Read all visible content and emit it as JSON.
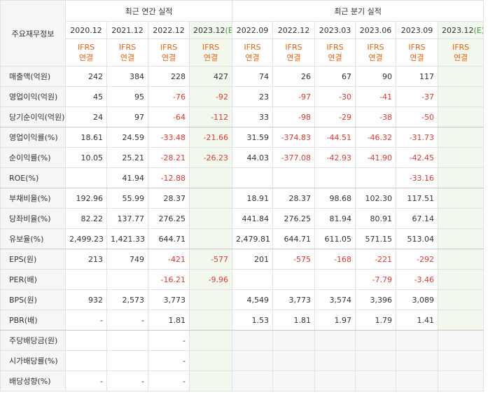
{
  "header": {
    "corner": "주요재무정보",
    "groups": [
      "최근 연간 실적",
      "최근 분기 실적"
    ],
    "periods": [
      {
        "text": "2020.12"
      },
      {
        "text": "2021.12"
      },
      {
        "text": "2022.12"
      },
      {
        "text": "2023.12",
        "mark": "(E)"
      },
      {
        "text": "2022.09"
      },
      {
        "text": "2022.12"
      },
      {
        "text": "2023.03"
      },
      {
        "text": "2023.06"
      },
      {
        "text": "2023.09"
      },
      {
        "text": "2023.12",
        "mark": "(E)"
      }
    ],
    "basis": [
      {
        "line1": "IFRS",
        "line2": "연결"
      },
      {
        "line1": "IFRS",
        "line2": "연결"
      },
      {
        "line1": "IFRS",
        "line2": "연결"
      },
      {
        "line1": "IFRS",
        "line2": "연결"
      },
      {
        "line1": "IFRS",
        "line2": "연결"
      },
      {
        "line1": "IFRS",
        "line2": "연결"
      },
      {
        "line1": "IFRS",
        "line2": "연결"
      },
      {
        "line1": "IFRS",
        "line2": "연결"
      },
      {
        "line1": "IFRS",
        "line2": "연결"
      },
      {
        "line1": "IFRS",
        "line2": "연결"
      }
    ]
  },
  "table": {
    "rows": [
      {
        "label": "매출액(억원)",
        "values": [
          "242",
          "384",
          "228",
          "427",
          "74",
          "26",
          "67",
          "90",
          "117",
          null
        ]
      },
      {
        "label": "영업이익(억원)",
        "values": [
          "45",
          "95",
          "-76",
          "-92",
          "23",
          "-97",
          "-30",
          "-41",
          "-37",
          null
        ]
      },
      {
        "label": "당기순이익(억원)",
        "values": [
          "24",
          "97",
          "-64",
          "-112",
          "33",
          "-98",
          "-29",
          "-38",
          "-50",
          null
        ]
      },
      {
        "label": "영업이익률(%)",
        "values": [
          "18.61",
          "24.59",
          "-33.48",
          "-21.66",
          "31.59",
          "-374.83",
          "-44.51",
          "-46.32",
          "-31.73",
          null
        ]
      },
      {
        "label": "순이익률(%)",
        "values": [
          "10.05",
          "25.21",
          "-28.21",
          "-26.23",
          "44.03",
          "-377.08",
          "-42.93",
          "-41.90",
          "-42.45",
          null
        ]
      },
      {
        "label": "ROE(%)",
        "values": [
          null,
          "41.94",
          "-12.88",
          null,
          null,
          null,
          null,
          null,
          "-33.16",
          null
        ]
      },
      {
        "label": "부채비율(%)",
        "values": [
          "192.96",
          "55.99",
          "28.37",
          null,
          "18.91",
          "28.37",
          "98.68",
          "102.30",
          "117.51",
          null
        ]
      },
      {
        "label": "당좌비율(%)",
        "values": [
          "82.22",
          "137.77",
          "276.25",
          null,
          "441.84",
          "276.25",
          "81.94",
          "80.91",
          "67.14",
          null
        ]
      },
      {
        "label": "유보율(%)",
        "values": [
          "2,499.23",
          "1,421.33",
          "644.71",
          null,
          "2,479.81",
          "644.71",
          "611.05",
          "571.15",
          "513.04",
          null
        ]
      },
      {
        "label": "EPS(원)",
        "values": [
          "213",
          "749",
          "-421",
          "-577",
          "201",
          "-575",
          "-168",
          "-221",
          "-292",
          null
        ]
      },
      {
        "label": "PER(배)",
        "values": [
          null,
          null,
          "-16.21",
          "-9.96",
          null,
          null,
          null,
          "-7.79",
          "-3.46",
          null
        ]
      },
      {
        "label": "BPS(원)",
        "values": [
          "932",
          "2,573",
          "3,773",
          null,
          "4,549",
          "3,773",
          "3,574",
          "3,396",
          "3,089",
          null
        ]
      },
      {
        "label": "PBR(배)",
        "values": [
          "-",
          "-",
          "1.81",
          null,
          "1.53",
          "1.81",
          "1.97",
          "1.79",
          "1.41",
          null
        ]
      },
      {
        "label": "주당배당금(원)",
        "values": [
          null,
          null,
          "-",
          null,
          null,
          null,
          null,
          null,
          null,
          null
        ]
      },
      {
        "label": "시가배당률(%)",
        "values": [
          null,
          null,
          "-",
          null,
          null,
          null,
          null,
          null,
          null,
          null
        ]
      },
      {
        "label": "배당성향(%)",
        "values": [
          "-",
          "-",
          "-",
          null,
          null,
          null,
          null,
          null,
          null,
          null
        ]
      }
    ]
  }
}
